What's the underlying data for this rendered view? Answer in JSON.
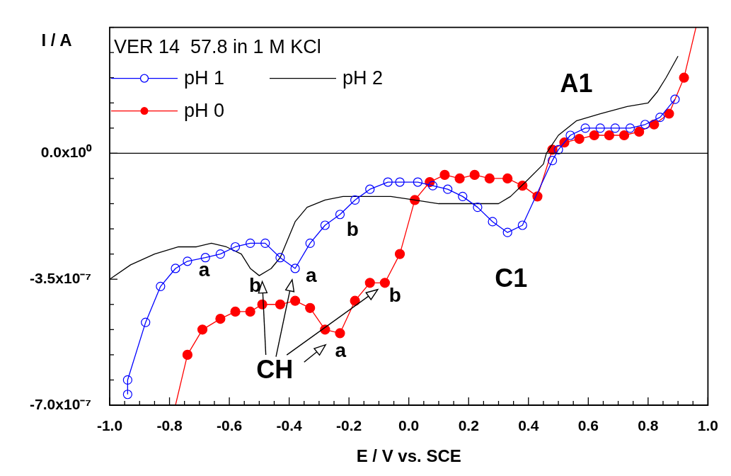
{
  "chart_data": {
    "type": "line",
    "title": "VER 14  57.8 in 1 M KCl",
    "xlabel": "E / V vs. SCE",
    "ylabel": "I / A",
    "legend": "top left",
    "xlim": [
      -1,
      1
    ],
    "ylim": [
      -7e-07,
      3.5e-07
    ],
    "xticks": [
      {
        "value": -1,
        "label": "-1.0"
      },
      {
        "value": -0.95,
        "label": null
      },
      {
        "value": -0.9,
        "label": null
      },
      {
        "value": -0.85,
        "label": null
      },
      {
        "value": -0.8,
        "label": "-0.8"
      },
      {
        "value": -0.75,
        "label": null
      },
      {
        "value": -0.7,
        "label": null
      },
      {
        "value": -0.65,
        "label": null
      },
      {
        "value": -0.6,
        "label": "-0.6"
      },
      {
        "value": -0.55,
        "label": null
      },
      {
        "value": -0.5,
        "label": null
      },
      {
        "value": -0.45,
        "label": null
      },
      {
        "value": -0.4,
        "label": "-0.4"
      },
      {
        "value": -0.35,
        "label": null
      },
      {
        "value": -0.3,
        "label": null
      },
      {
        "value": -0.25,
        "label": null
      },
      {
        "value": -0.2,
        "label": "-0.2"
      },
      {
        "value": -0.15,
        "label": null
      },
      {
        "value": -0.1,
        "label": null
      },
      {
        "value": -0.05,
        "label": null
      },
      {
        "value": 0,
        "label": "0.0"
      },
      {
        "value": 0.05,
        "label": null
      },
      {
        "value": 0.1,
        "label": null
      },
      {
        "value": 0.15,
        "label": null
      },
      {
        "value": 0.2,
        "label": "0.2"
      },
      {
        "value": 0.25,
        "label": null
      },
      {
        "value": 0.3,
        "label": null
      },
      {
        "value": 0.35,
        "label": null
      },
      {
        "value": 0.4,
        "label": "0.4"
      },
      {
        "value": 0.45,
        "label": null
      },
      {
        "value": 0.5,
        "label": null
      },
      {
        "value": 0.55,
        "label": null
      },
      {
        "value": 0.6,
        "label": "0.6"
      },
      {
        "value": 0.65,
        "label": null
      },
      {
        "value": 0.7,
        "label": null
      },
      {
        "value": 0.75,
        "label": null
      },
      {
        "value": 0.8,
        "label": "0.8"
      },
      {
        "value": 0.85,
        "label": null
      },
      {
        "value": 0.9,
        "label": null
      },
      {
        "value": 0.95,
        "label": null
      },
      {
        "value": 1,
        "label": "1.0"
      }
    ],
    "yticks": [
      {
        "value": -7e-07,
        "label": "-7.0x10⁻⁷"
      },
      {
        "value": -6.3e-07,
        "label": null
      },
      {
        "value": -5.6e-07,
        "label": null
      },
      {
        "value": -4.9e-07,
        "label": null
      },
      {
        "value": -4.2e-07,
        "label": null
      },
      {
        "value": -3.5e-07,
        "label": "-3.5x10⁻⁷"
      },
      {
        "value": -2.8e-07,
        "label": null
      },
      {
        "value": -2.1e-07,
        "label": null
      },
      {
        "value": -1.4e-07,
        "label": null
      },
      {
        "value": -7e-08,
        "label": null
      },
      {
        "value": 0,
        "label": "0.0x10⁰"
      },
      {
        "value": 7e-08,
        "label": null
      },
      {
        "value": 1.4e-07,
        "label": null
      },
      {
        "value": 2.1e-07,
        "label": null
      },
      {
        "value": 2.8e-07,
        "label": null
      },
      {
        "value": 3.5e-07,
        "label": null
      }
    ],
    "ref_lines": [
      {
        "axis": "y",
        "value": 0,
        "color": "#000000"
      }
    ],
    "series": [
      {
        "name": "pH 1",
        "color": "#0000ff",
        "marker": "circle",
        "x": [
          -0.94,
          -0.94,
          -0.88,
          -0.83,
          -0.78,
          -0.74,
          -0.68,
          -0.63,
          -0.58,
          -0.53,
          -0.48,
          -0.43,
          -0.38,
          -0.33,
          -0.28,
          -0.23,
          -0.18,
          -0.13,
          -0.07,
          -0.03,
          0.03,
          0.08,
          0.13,
          0.18,
          0.23,
          0.28,
          0.33,
          0.38,
          0.48,
          0.5,
          0.54,
          0.59,
          0.64,
          0.69,
          0.74,
          0.79,
          0.84,
          0.89
        ],
        "values": [
          -6.7e-07,
          -6.3e-07,
          -4.7e-07,
          -3.7e-07,
          -3.2e-07,
          -3e-07,
          -2.9e-07,
          -2.8e-07,
          -2.6e-07,
          -2.5e-07,
          -2.5e-07,
          -2.9e-07,
          -3.2e-07,
          -2.5e-07,
          -2e-07,
          -1.7e-07,
          -1.3e-07,
          -1e-07,
          -8e-08,
          -8e-08,
          -8e-08,
          -9e-08,
          -1e-07,
          -1.2e-07,
          -1.5e-07,
          -1.9e-07,
          -2.2e-07,
          -2e-07,
          -2e-08,
          1e-08,
          5e-08,
          7e-08,
          7e-08,
          7e-08,
          7e-08,
          8e-08,
          1e-07,
          1.5e-07
        ]
      },
      {
        "name": "pH 2",
        "color": "#000000",
        "marker": "none",
        "x": [
          -1,
          -0.93,
          -0.85,
          -0.77,
          -0.71,
          -0.66,
          -0.61,
          -0.56,
          -0.53,
          -0.5,
          -0.46,
          -0.43,
          -0.38,
          -0.34,
          -0.28,
          -0.22,
          -0.14,
          -0.06,
          0.02,
          0.1,
          0.18,
          0.26,
          0.3,
          0.34,
          0.39,
          0.45,
          0.46,
          0.5,
          0.56,
          0.64,
          0.73,
          0.8,
          0.83,
          0.86,
          0.9
        ],
        "values": [
          -3.5e-07,
          -3.1e-07,
          -2.8e-07,
          -2.6e-07,
          -2.6e-07,
          -2.5e-07,
          -2.6e-07,
          -2.8e-07,
          -3.2e-07,
          -3.4e-07,
          -3.2e-07,
          -2.9e-07,
          -1.9e-07,
          -1.5e-07,
          -1.3e-07,
          -1.2e-07,
          -1.2e-07,
          -1.2e-07,
          -1.3e-07,
          -1.4e-07,
          -1.4e-07,
          -1.4e-07,
          -1.4e-07,
          -1.2e-07,
          -8e-08,
          -3e-08,
          0,
          5e-08,
          9e-08,
          1.1e-07,
          1.3e-07,
          1.4e-07,
          1.7e-07,
          2.1e-07,
          2.7e-07
        ]
      },
      {
        "name": "pH 0",
        "color": "#ff0000",
        "marker": "circle",
        "x": [
          -0.78,
          -0.74,
          -0.69,
          -0.63,
          -0.58,
          -0.53,
          -0.49,
          -0.43,
          -0.38,
          -0.33,
          -0.28,
          -0.23,
          -0.18,
          -0.13,
          -0.08,
          -0.03,
          0.02,
          0.07,
          0.12,
          0.17,
          0.22,
          0.27,
          0.33,
          0.38,
          0.43,
          0.48,
          0.52,
          0.57,
          0.62,
          0.67,
          0.72,
          0.77,
          0.82,
          0.87,
          0.92,
          0.96
        ],
        "values": [
          -7e-07,
          -5.6e-07,
          -4.9e-07,
          -4.6e-07,
          -4.4e-07,
          -4.4e-07,
          -4.2e-07,
          -4.2e-07,
          -4.1e-07,
          -4.3e-07,
          -4.9e-07,
          -5e-07,
          -4.1e-07,
          -3.6e-07,
          -3.6e-07,
          -2.8e-07,
          -1.3e-07,
          -8e-08,
          -6e-08,
          -7e-08,
          -6e-08,
          -7e-08,
          -7e-08,
          -9e-08,
          -1.2e-07,
          1e-08,
          3e-08,
          4e-08,
          5e-08,
          5e-08,
          5e-08,
          6e-08,
          8e-08,
          1.1e-07,
          2.1e-07,
          3.5e-07
        ]
      }
    ],
    "annotations": [
      "A1",
      "C1",
      "a",
      "b",
      "b",
      "a",
      "b",
      "a",
      "CH"
    ]
  }
}
